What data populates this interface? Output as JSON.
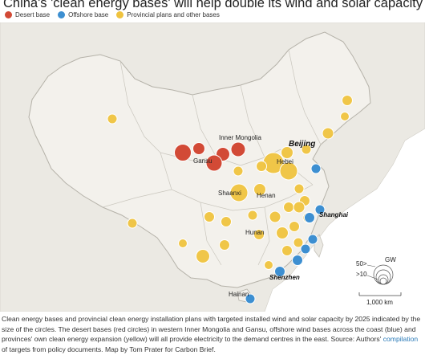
{
  "title": "China's 'clean energy bases' will help double its wind and solar capacity in five years",
  "legend": {
    "items": [
      {
        "label": "Desert base",
        "color": "#d24a36"
      },
      {
        "label": "Offshore base",
        "color": "#3d8fd1"
      },
      {
        "label": "Provincial plans and other bases",
        "color": "#efc33f"
      }
    ]
  },
  "colors": {
    "land_china": "#f3f1ec",
    "land_other": "#ebe9e3",
    "sea": "#ffffff",
    "border": "#bdbab1"
  },
  "map_labels": {
    "inner_mongolia": "Inner Mongolia",
    "gansu": "Gansu",
    "hebei": "Hebei",
    "beijing": "Beijing",
    "shaanxi": "Shaanxi",
    "henan": "Henan",
    "hunan": "Hunan",
    "shanghai": "Shanghai",
    "shenzhen": "Shenzhen",
    "hainan": "Hainan"
  },
  "size_key": {
    "unit": "GW",
    "large": "50>",
    "small": ">10"
  },
  "scale_bar": {
    "label": "1,000 km"
  },
  "caption": {
    "text_before_link": "Clean energy bases and provincial clean energy installation plans with targeted installed wind and solar capacity by 2025 indicated by the size of the circles. The desert bases (red circles) in western Inner Mongolia and Gansu, offshore wind bases across the coast (blue) and provinces' own clean energy expansion (yellow) will all provide electricity to the demand centres in the east. Source: Authors' ",
    "link": "compilation",
    "text_after_link": " of targets from policy documents. Map by Tom Prater for Carbon Brief."
  }
}
